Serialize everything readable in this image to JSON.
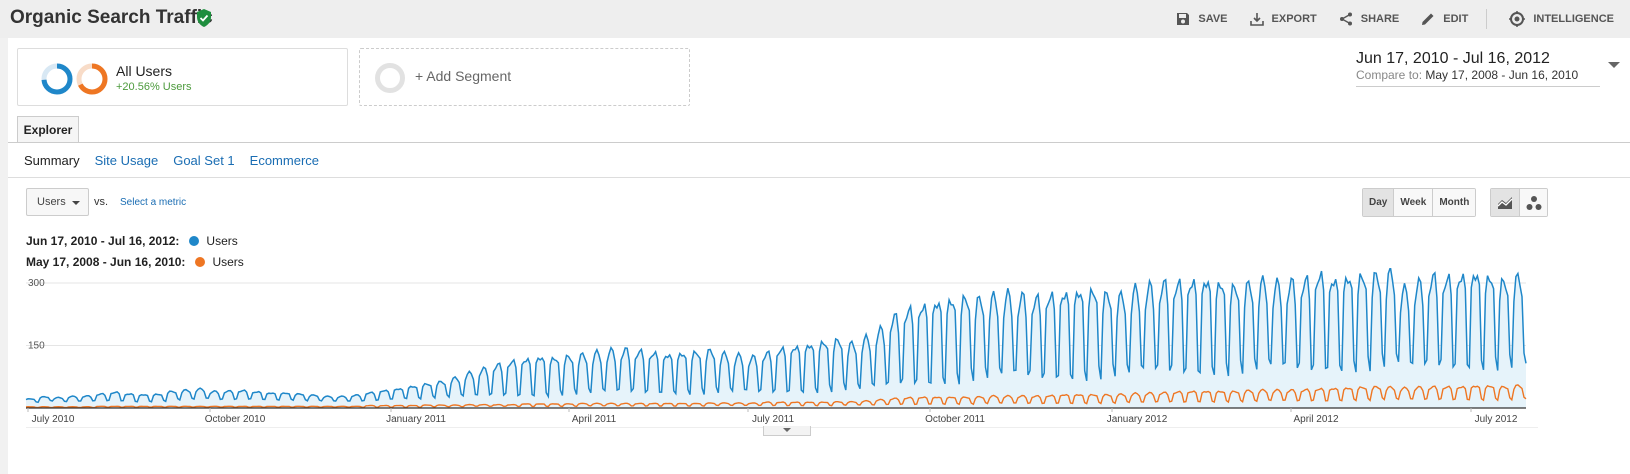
{
  "header": {
    "title": "Organic Search Traffic",
    "actions": [
      {
        "label": "SAVE",
        "icon": "save-icon"
      },
      {
        "label": "EXPORT",
        "icon": "export-icon"
      },
      {
        "label": "SHARE",
        "icon": "share-icon"
      },
      {
        "label": "EDIT",
        "icon": "edit-icon"
      },
      {
        "label": "INTELLIGENCE",
        "icon": "intelligence-icon"
      }
    ]
  },
  "segments": {
    "primary": {
      "name": "All Users",
      "change": "+20.56% Users"
    },
    "add_label": "+ Add Segment"
  },
  "date_range": {
    "current": "Jun 17, 2010 - Jul 16, 2012",
    "compare_label": "Compare to:",
    "compare": "May 17, 2008 - Jun 16, 2010"
  },
  "tabs": {
    "explorer": "Explorer"
  },
  "subnav": [
    "Summary",
    "Site Usage",
    "Goal Set 1",
    "Ecommerce"
  ],
  "metric": {
    "selected": "Users",
    "vs": "vs.",
    "select_metric": "Select a metric"
  },
  "time_buttons": [
    "Day",
    "Week",
    "Month"
  ],
  "colors": {
    "current": "#1f87c9",
    "previous": "#ee7623",
    "area": "#e6f3fa"
  },
  "legend": [
    {
      "range": "Jun 17, 2010 - Jul 16, 2012:",
      "metric": "Users",
      "color": "#1f87c9"
    },
    {
      "range": "May 17, 2008 - Jun 16, 2010:",
      "metric": "Users",
      "color": "#ee7623"
    }
  ],
  "chart_data": {
    "type": "line",
    "ylim": [
      0,
      300
    ],
    "yticks": [
      "300",
      "150"
    ],
    "xticks": [
      "July 2010",
      "October 2010",
      "January 2011",
      "April 2011",
      "July 2011",
      "October 2011",
      "January 2012",
      "April 2012",
      "July 2012"
    ],
    "series": [
      {
        "name": "Users",
        "period": "Jun 17, 2010 - Jul 16, 2012",
        "weekly_avg": [
          18,
          22,
          20,
          22,
          23,
          26,
          28,
          25,
          24,
          25,
          30,
          32,
          34,
          30,
          31,
          32,
          30,
          28,
          28,
          26,
          24,
          22,
          22,
          24,
          28,
          32,
          35,
          38,
          42,
          45,
          50,
          56,
          62,
          68,
          72,
          75,
          78,
          78,
          80,
          82,
          85,
          88,
          90,
          88,
          86,
          84,
          85,
          86,
          88,
          84,
          82,
          80,
          86,
          92,
          95,
          98,
          102,
          105,
          100,
          108,
          120,
          140,
          150,
          155,
          162,
          165,
          170,
          168,
          172,
          175,
          172,
          170,
          175,
          178,
          180,
          182,
          178,
          176,
          185,
          190,
          195,
          196,
          198,
          200,
          196,
          192,
          195,
          200,
          196,
          198,
          202,
          210,
          205,
          208,
          210,
          212,
          215,
          190,
          200,
          210,
          208,
          212,
          215,
          210,
          205,
          210
        ],
        "weekly_amp": [
          4,
          5,
          5,
          6,
          6,
          8,
          10,
          9,
          8,
          8,
          10,
          11,
          12,
          10,
          10,
          10,
          9,
          8,
          8,
          8,
          7,
          6,
          6,
          7,
          9,
          10,
          11,
          14,
          16,
          18,
          22,
          28,
          32,
          36,
          40,
          42,
          44,
          42,
          44,
          46,
          48,
          50,
          50,
          48,
          46,
          44,
          46,
          48,
          50,
          46,
          44,
          42,
          46,
          50,
          52,
          54,
          56,
          58,
          55,
          60,
          68,
          80,
          86,
          90,
          92,
          94,
          95,
          94,
          96,
          98,
          96,
          94,
          96,
          98,
          100,
          100,
          96,
          94,
          100,
          102,
          104,
          104,
          106,
          106,
          104,
          100,
          102,
          104,
          102,
          104,
          106,
          110,
          104,
          106,
          108,
          108,
          110,
          95,
          100,
          105,
          104,
          106,
          108,
          105,
          100,
          104
        ]
      },
      {
        "name": "Users",
        "period": "May 17, 2008 - Jun 16, 2010",
        "weekly_avg": [
          2,
          2,
          2,
          2,
          2,
          3,
          3,
          3,
          3,
          3,
          3,
          3,
          3,
          3,
          3,
          3,
          3,
          3,
          3,
          3,
          3,
          3,
          3,
          3,
          4,
          4,
          4,
          4,
          5,
          5,
          5,
          6,
          6,
          6,
          6,
          7,
          7,
          7,
          7,
          8,
          8,
          8,
          8,
          8,
          8,
          8,
          8,
          8,
          9,
          9,
          9,
          9,
          10,
          10,
          10,
          10,
          10,
          11,
          11,
          12,
          14,
          16,
          17,
          18,
          18,
          18,
          18,
          19,
          20,
          20,
          20,
          20,
          21,
          22,
          22,
          22,
          22,
          23,
          24,
          25,
          26,
          27,
          28,
          28,
          28,
          28,
          29,
          30,
          30,
          30,
          31,
          32,
          33,
          34,
          35,
          36,
          35,
          34,
          35,
          36,
          36,
          36,
          37,
          37,
          36,
          38
        ],
        "weekly_amp": [
          1,
          1,
          1,
          1,
          1,
          1,
          1,
          1,
          1,
          1,
          1,
          1,
          1,
          1,
          1,
          1,
          1,
          1,
          1,
          1,
          1,
          1,
          1,
          1,
          2,
          2,
          2,
          2,
          2,
          2,
          2,
          2,
          2,
          2,
          2,
          3,
          3,
          3,
          3,
          3,
          3,
          3,
          3,
          3,
          3,
          3,
          3,
          3,
          3,
          3,
          3,
          3,
          4,
          4,
          4,
          4,
          4,
          4,
          4,
          5,
          6,
          7,
          8,
          8,
          8,
          8,
          8,
          8,
          9,
          9,
          9,
          9,
          9,
          10,
          10,
          10,
          10,
          10,
          11,
          11,
          11,
          12,
          12,
          12,
          12,
          12,
          13,
          13,
          13,
          13,
          13,
          14,
          14,
          14,
          15,
          15,
          15,
          14,
          15,
          15,
          15,
          15,
          16,
          16,
          15,
          16
        ]
      }
    ]
  }
}
